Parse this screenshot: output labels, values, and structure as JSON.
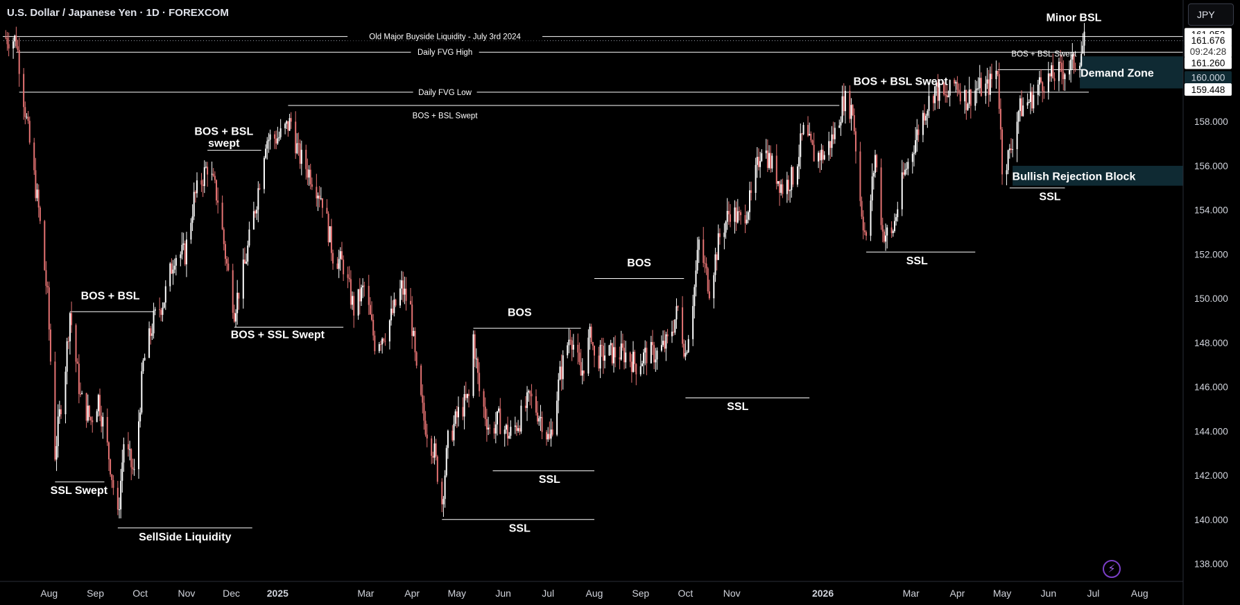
{
  "header": {
    "title": "U.S. Dollar / Japanese Yen · 1D · FOREXCOM"
  },
  "toolbar": {
    "currency": "JPY"
  },
  "icons": {
    "replay": "lightning-icon"
  },
  "colors": {
    "background": "#000000",
    "bull": "#ffffff",
    "bear": "#e57373",
    "zone": "#0f2a33",
    "grid_label": "#d1d4dc"
  },
  "chart_data": {
    "type": "candlestick",
    "title": "U.S. Dollar / Japanese Yen · 1D · FOREXCOM",
    "ylim": [
      137.2,
      163.5
    ],
    "y_ticks": [
      138,
      140,
      142,
      144,
      146,
      148,
      150,
      152,
      154,
      156,
      158
    ],
    "x_ticks": [
      {
        "label": "Aug",
        "date": "2024-08-01"
      },
      {
        "label": "Sep",
        "date": "2024-09-01"
      },
      {
        "label": "Oct",
        "date": "2024-10-01"
      },
      {
        "label": "Nov",
        "date": "2024-11-01"
      },
      {
        "label": "Dec",
        "date": "2024-12-01"
      },
      {
        "label": "2025",
        "date": "2025-01-01"
      },
      {
        "label": "Mar",
        "date": "2025-03-01"
      },
      {
        "label": "Apr",
        "date": "2025-04-01"
      },
      {
        "label": "May",
        "date": "2025-05-01"
      },
      {
        "label": "Jun",
        "date": "2025-06-01"
      },
      {
        "label": "Jul",
        "date": "2025-07-01"
      },
      {
        "label": "Aug",
        "date": "2025-08-01"
      },
      {
        "label": "Sep",
        "date": "2025-09-01"
      },
      {
        "label": "Oct",
        "date": "2025-10-01"
      },
      {
        "label": "Nov",
        "date": "2025-11-01"
      },
      {
        "label": "2026",
        "date": "2026-01-01"
      },
      {
        "label": "Mar",
        "date": "2026-03-01"
      },
      {
        "label": "Apr",
        "date": "2026-04-01"
      },
      {
        "label": "May",
        "date": "2026-05-01"
      },
      {
        "label": "Jun",
        "date": "2026-06-01"
      },
      {
        "label": "Jul",
        "date": "2026-07-01"
      },
      {
        "label": "Aug",
        "date": "2026-08-01"
      }
    ],
    "price_anchors": [
      [
        "2024-07-03",
        161.8
      ],
      [
        "2024-07-10",
        161.7
      ],
      [
        "2024-07-18",
        157.5
      ],
      [
        "2024-07-25",
        154.0
      ],
      [
        "2024-07-31",
        150.0
      ],
      [
        "2024-08-05",
        143.0
      ],
      [
        "2024-08-12",
        147.0
      ],
      [
        "2024-08-15",
        149.4
      ],
      [
        "2024-08-22",
        145.5
      ],
      [
        "2024-08-29",
        144.5
      ],
      [
        "2024-09-03",
        145.5
      ],
      [
        "2024-09-11",
        142.5
      ],
      [
        "2024-09-16",
        140.0
      ],
      [
        "2024-09-20",
        143.5
      ],
      [
        "2024-09-27",
        142.0
      ],
      [
        "2024-10-03",
        147.0
      ],
      [
        "2024-10-10",
        149.0
      ],
      [
        "2024-10-17",
        150.0
      ],
      [
        "2024-10-24",
        152.0
      ],
      [
        "2024-10-31",
        152.0
      ],
      [
        "2024-11-06",
        154.5
      ],
      [
        "2024-11-15",
        156.0
      ],
      [
        "2024-11-22",
        154.5
      ],
      [
        "2024-11-28",
        151.5
      ],
      [
        "2024-12-03",
        149.5
      ],
      [
        "2024-12-10",
        151.5
      ],
      [
        "2024-12-18",
        154.5
      ],
      [
        "2024-12-24",
        157.2
      ],
      [
        "2025-01-02",
        157.3
      ],
      [
        "2025-01-10",
        158.0
      ],
      [
        "2025-01-15",
        156.5
      ],
      [
        "2025-01-24",
        155.5
      ],
      [
        "2025-01-31",
        154.5
      ],
      [
        "2025-02-07",
        152.0
      ],
      [
        "2025-02-14",
        151.5
      ],
      [
        "2025-02-21",
        149.5
      ],
      [
        "2025-02-28",
        150.5
      ],
      [
        "2025-03-07",
        148.0
      ],
      [
        "2025-03-14",
        148.5
      ],
      [
        "2025-03-20",
        149.5
      ],
      [
        "2025-03-25",
        150.5
      ],
      [
        "2025-03-31",
        149.5
      ],
      [
        "2025-04-04",
        146.5
      ],
      [
        "2025-04-09",
        144.5
      ],
      [
        "2025-04-16",
        143.0
      ],
      [
        "2025-04-21",
        140.8
      ],
      [
        "2025-04-25",
        143.5
      ],
      [
        "2025-05-02",
        144.8
      ],
      [
        "2025-05-09",
        145.5
      ],
      [
        "2025-05-12",
        148.3
      ],
      [
        "2025-05-16",
        145.8
      ],
      [
        "2025-05-23",
        144.0
      ],
      [
        "2025-05-29",
        144.5
      ],
      [
        "2025-06-05",
        143.8
      ],
      [
        "2025-06-12",
        144.5
      ],
      [
        "2025-06-19",
        145.5
      ],
      [
        "2025-06-27",
        144.5
      ],
      [
        "2025-07-02",
        143.5
      ],
      [
        "2025-07-09",
        146.5
      ],
      [
        "2025-07-16",
        148.5
      ],
      [
        "2025-07-23",
        146.5
      ],
      [
        "2025-07-30",
        148.5
      ],
      [
        "2025-08-01",
        147.2
      ],
      [
        "2025-08-08",
        147.5
      ],
      [
        "2025-08-15",
        147.5
      ],
      [
        "2025-08-22",
        147.5
      ],
      [
        "2025-08-29",
        147.0
      ],
      [
        "2025-09-05",
        147.5
      ],
      [
        "2025-09-12",
        147.5
      ],
      [
        "2025-09-19",
        148.0
      ],
      [
        "2025-09-26",
        149.5
      ],
      [
        "2025-10-01",
        147.5
      ],
      [
        "2025-10-07",
        150.5
      ],
      [
        "2025-10-10",
        152.5
      ],
      [
        "2025-10-17",
        150.5
      ],
      [
        "2025-10-24",
        152.8
      ],
      [
        "2025-10-31",
        154.0
      ],
      [
        "2025-11-07",
        153.5
      ],
      [
        "2025-11-14",
        154.5
      ],
      [
        "2025-11-21",
        157.0
      ],
      [
        "2025-11-28",
        156.0
      ],
      [
        "2025-12-05",
        155.0
      ],
      [
        "2025-12-12",
        155.5
      ],
      [
        "2025-12-19",
        157.5
      ],
      [
        "2025-12-26",
        156.5
      ],
      [
        "2026-01-02",
        156.5
      ],
      [
        "2026-01-09",
        157.5
      ],
      [
        "2026-01-15",
        159.0
      ],
      [
        "2026-01-21",
        158.5
      ],
      [
        "2026-01-26",
        154.5
      ],
      [
        "2026-01-30",
        152.5
      ],
      [
        "2026-02-05",
        156.5
      ],
      [
        "2026-02-10",
        153.0
      ],
      [
        "2026-02-16",
        152.8
      ],
      [
        "2026-02-24",
        155.5
      ],
      [
        "2026-03-03",
        157.0
      ],
      [
        "2026-03-10",
        158.5
      ],
      [
        "2026-03-17",
        159.5
      ],
      [
        "2026-03-24",
        159.0
      ],
      [
        "2026-03-31",
        159.8
      ],
      [
        "2026-04-07",
        159.0
      ],
      [
        "2026-04-14",
        159.5
      ],
      [
        "2026-04-21",
        159.5
      ],
      [
        "2026-04-28",
        160.4
      ],
      [
        "2026-05-01",
        156.0
      ],
      [
        "2026-05-06",
        156.5
      ],
      [
        "2026-05-12",
        158.5
      ],
      [
        "2026-05-20",
        159.0
      ],
      [
        "2026-05-27",
        159.8
      ],
      [
        "2026-06-03",
        160.0
      ],
      [
        "2026-06-10",
        160.3
      ],
      [
        "2026-06-16",
        160.5
      ],
      [
        "2026-06-22",
        161.0
      ],
      [
        "2026-06-25",
        161.6
      ]
    ],
    "price_labels": [
      {
        "text": "161.952",
        "price": 161.95,
        "style": "light"
      },
      {
        "text": "161.676",
        "price": 161.68,
        "style": "light"
      },
      {
        "text": "09:24:28",
        "price": 161.18,
        "style": "light"
      },
      {
        "text": "161.260",
        "price": 160.66,
        "style": "light"
      },
      {
        "text": "160.000",
        "price": 160.0,
        "style": "partial"
      },
      {
        "text": "159.448",
        "price": 159.45,
        "style": "light"
      }
    ],
    "levels": [
      {
        "text": "Old Major Buyside Liquidity - July 3rd 2024",
        "price": 161.85,
        "from": "2024-07-01",
        "to": "2026-08-31",
        "label_at": "2025-04-23",
        "style": "line-small",
        "dotted_extension": true
      },
      {
        "text": "Daily FVG High",
        "price": 161.14,
        "from": "2024-07-10",
        "to": "2026-08-31",
        "label_at": "2025-04-23",
        "style": "line-small"
      },
      {
        "text": "Daily FVG Low",
        "price": 159.33,
        "from": "2024-07-12",
        "to": "2026-06-28",
        "label_at": "2025-04-23",
        "style": "line-small"
      },
      {
        "text": "BOS + BSL Swept",
        "price": 158.73,
        "from": "2025-01-08",
        "to": "2026-01-12",
        "label_at": "2025-04-23",
        "label_price": 158.15,
        "style": "label-small"
      },
      {
        "text": "BOS + BSL Swept",
        "price": 160.35,
        "from": "2026-04-28",
        "to": "2026-06-25",
        "label_at": "2026-05-29",
        "label_price": 160.95,
        "style": "label-small-above"
      },
      {
        "text": "BOS + BSL Swept",
        "price": 159.1,
        "from": "2026-01-15",
        "to": "2026-01-15",
        "label_at": "2026-02-22",
        "label_price": 159.65,
        "style": "label-only"
      },
      {
        "text": "Minor BSL",
        "price": 162.0,
        "from": "2026-06-18",
        "to": "2026-06-18",
        "label_at": "2026-06-18",
        "label_price": 162.55,
        "style": "label-only"
      },
      {
        "text": "BOS + BSL",
        "price": 149.4,
        "from": "2024-08-15",
        "to": "2024-10-10",
        "label_at": "2024-09-11",
        "label_price": 149.95,
        "style": "line-above"
      },
      {
        "text": "BOS + BSL\nswept",
        "price": 156.7,
        "from": "2024-11-15",
        "to": "2024-12-21",
        "label_at": "2024-11-26",
        "label_price": 157.4,
        "style": "line-above2"
      },
      {
        "text": "BOS + SSL Swept",
        "price": 148.7,
        "from": "2024-12-03",
        "to": "2025-02-14",
        "label_at": "2025-01-01",
        "label_price": 148.2,
        "style": "line-below"
      },
      {
        "text": "SSL Swept",
        "price": 141.7,
        "from": "2024-08-05",
        "to": "2024-09-07",
        "label_at": "2024-08-21",
        "label_price": 141.15,
        "style": "line-below"
      },
      {
        "text": "SellSide Liquidity",
        "price": 139.62,
        "from": "2024-09-16",
        "to": "2024-12-15",
        "label_at": "2024-10-31",
        "label_price": 139.05,
        "style": "line-below"
      },
      {
        "text": "BOS",
        "price": 148.65,
        "from": "2025-05-12",
        "to": "2025-07-23",
        "label_at": "2025-06-12",
        "label_price": 149.2,
        "style": "line-above"
      },
      {
        "text": "BOS",
        "price": 150.9,
        "from": "2025-08-01",
        "to": "2025-09-30",
        "label_at": "2025-08-31",
        "label_price": 151.45,
        "style": "line-above"
      },
      {
        "text": "SSL",
        "price": 142.2,
        "from": "2025-05-25",
        "to": "2025-08-01",
        "label_at": "2025-07-02",
        "label_price": 141.65,
        "style": "line-below"
      },
      {
        "text": "SSL",
        "price": 140.0,
        "from": "2025-04-21",
        "to": "2025-08-01",
        "label_at": "2025-06-12",
        "label_price": 139.45,
        "style": "line-below"
      },
      {
        "text": "SSL",
        "price": 145.5,
        "from": "2025-10-01",
        "to": "2025-12-23",
        "label_at": "2025-11-05",
        "label_price": 144.95,
        "style": "line-below"
      },
      {
        "text": "SSL",
        "price": 152.1,
        "from": "2026-01-30",
        "to": "2026-04-13",
        "label_at": "2026-03-05",
        "label_price": 151.55,
        "style": "line-below"
      },
      {
        "text": "SSL",
        "price": 155.0,
        "from": "2026-05-06",
        "to": "2026-06-12",
        "label_at": "2026-06-02",
        "label_price": 154.45,
        "style": "line-below"
      }
    ],
    "zones": [
      {
        "text": "Demand Zone",
        "top": 160.95,
        "bottom": 159.5,
        "from": "2026-06-22",
        "to": "2026-08-31",
        "label_at": "2026-07-17"
      },
      {
        "text": "Bullish Rejection Block",
        "top": 156.0,
        "bottom": 155.1,
        "from": "2026-05-08",
        "to": "2026-08-31",
        "label_at": "2026-06-18"
      }
    ]
  }
}
